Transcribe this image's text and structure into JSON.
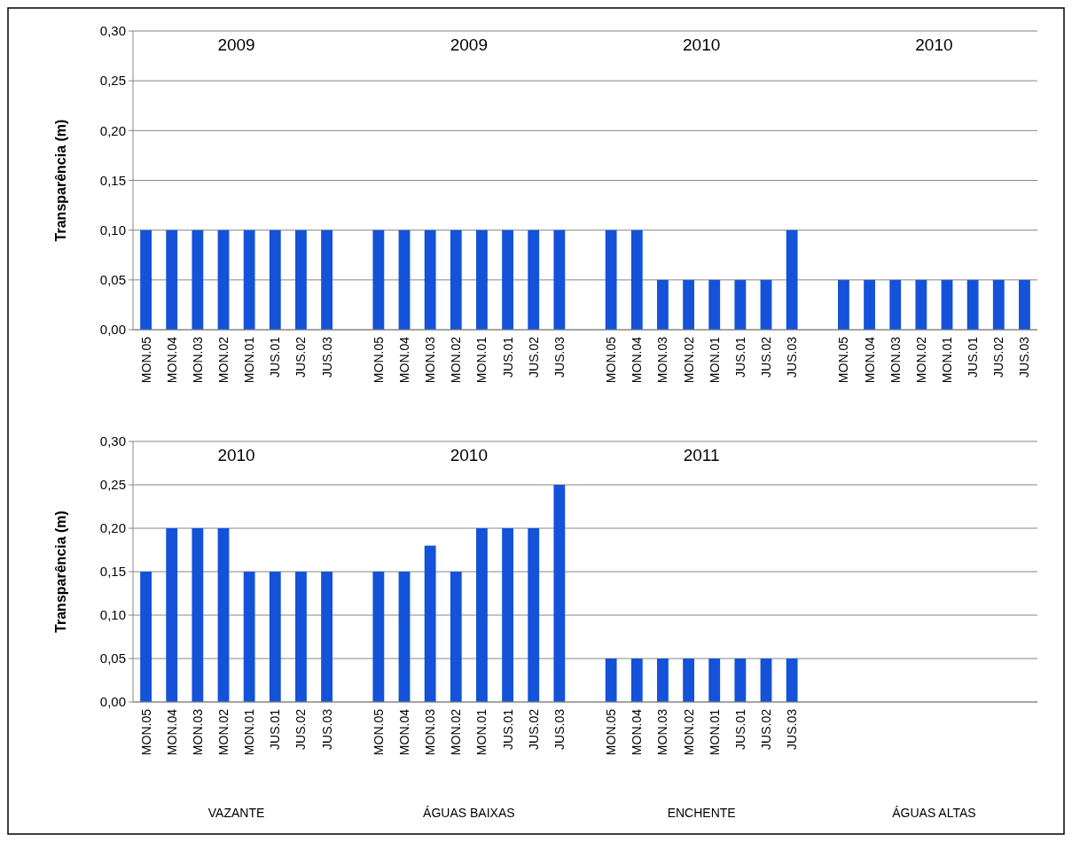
{
  "chart_data": [
    {
      "type": "bar",
      "ylabel": "Transparência (m)",
      "color": "#1352d9",
      "grid": "y",
      "ylim": [
        0,
        0.3
      ],
      "yticks": [
        {
          "value": 0,
          "label": "0,00"
        },
        {
          "value": 0.05,
          "label": "0,05"
        },
        {
          "value": 0.1,
          "label": "0,10"
        },
        {
          "value": 0.15,
          "label": "0,15"
        },
        {
          "value": 0.2,
          "label": "0,20"
        },
        {
          "value": 0.25,
          "label": "0,25"
        },
        {
          "value": 0.3,
          "label": "0,30"
        }
      ],
      "categories": [
        "MON.05",
        "MON.04",
        "MON.03",
        "MON.02",
        "MON.01",
        "JUS.01",
        "JUS.02",
        "JUS.03",
        null,
        "MON.05",
        "MON.04",
        "MON.03",
        "MON.02",
        "MON.01",
        "JUS.01",
        "JUS.02",
        "JUS.03",
        null,
        "MON.05",
        "MON.04",
        "MON.03",
        "MON.02",
        "MON.01",
        "JUS.01",
        "JUS.02",
        "JUS.03",
        null,
        "MON.05",
        "MON.04",
        "MON.03",
        "MON.02",
        "MON.01",
        "JUS.01",
        "JUS.02",
        "JUS.03"
      ],
      "values": [
        0.1,
        0.1,
        0.1,
        0.1,
        0.1,
        0.1,
        0.1,
        0.1,
        null,
        0.1,
        0.1,
        0.1,
        0.1,
        0.1,
        0.1,
        0.1,
        0.1,
        null,
        0.1,
        0.1,
        0.05,
        0.05,
        0.05,
        0.05,
        0.05,
        0.1,
        null,
        0.05,
        0.05,
        0.05,
        0.05,
        0.05,
        0.05,
        0.05,
        0.05
      ],
      "annotations": [
        "2009",
        "2009",
        "2010",
        "2010"
      ]
    },
    {
      "type": "bar",
      "ylabel": "Transparência (m)",
      "color": "#1352d9",
      "grid": "y",
      "ylim": [
        0,
        0.3
      ],
      "yticks": [
        {
          "value": 0,
          "label": "0,00"
        },
        {
          "value": 0.05,
          "label": "0,05"
        },
        {
          "value": 0.1,
          "label": "0,10"
        },
        {
          "value": 0.15,
          "label": "0,15"
        },
        {
          "value": 0.2,
          "label": "0,20"
        },
        {
          "value": 0.25,
          "label": "0,25"
        },
        {
          "value": 0.3,
          "label": "0,30"
        }
      ],
      "categories": [
        "MON.05",
        "MON.04",
        "MON.03",
        "MON.02",
        "MON.01",
        "JUS.01",
        "JUS.02",
        "JUS.03",
        null,
        "MON.05",
        "MON.04",
        "MON.03",
        "MON.02",
        "MON.01",
        "JUS.01",
        "JUS.02",
        "JUS.03",
        null,
        "MON.05",
        "MON.04",
        "MON.03",
        "MON.02",
        "MON.01",
        "JUS.01",
        "JUS.02",
        "JUS.03",
        null,
        null,
        null,
        null,
        null,
        null,
        null,
        null,
        null
      ],
      "values": [
        0.15,
        0.2,
        0.2,
        0.2,
        0.15,
        0.15,
        0.15,
        0.15,
        null,
        0.15,
        0.15,
        0.18,
        0.15,
        0.2,
        0.2,
        0.2,
        0.25,
        null,
        0.05,
        0.05,
        0.05,
        0.05,
        0.05,
        0.05,
        0.05,
        0.05,
        null,
        null,
        null,
        null,
        null,
        null,
        null,
        null,
        null
      ],
      "annotations": [
        "2010",
        "2010",
        "2011",
        "VAZANTE",
        "ÁGUAS BAIXAS",
        "ENCHENTE",
        "ÁGUAS ALTAS"
      ]
    }
  ]
}
